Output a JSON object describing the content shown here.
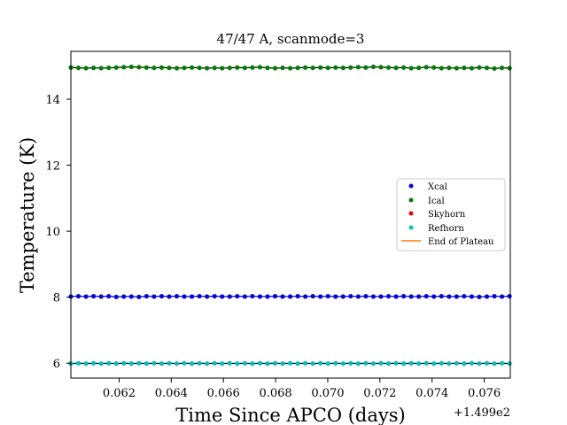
{
  "chart_data": {
    "type": "scatter",
    "title": "47/47 A, scanmode=3",
    "xlabel": "Time Since APCO (days)",
    "ylabel": "Temperature (K)",
    "x_offset_label": "+1.499e2",
    "xlim": [
      0.06015,
      0.077
    ],
    "ylim": [
      5.55,
      15.45
    ],
    "x_ticks": [
      0.062,
      0.064,
      0.066,
      0.068,
      0.07,
      0.072,
      0.074,
      0.076
    ],
    "x_tick_labels": [
      "0.062",
      "0.064",
      "0.066",
      "0.068",
      "0.070",
      "0.072",
      "0.074",
      "0.076"
    ],
    "y_ticks": [
      6,
      8,
      10,
      12,
      14
    ],
    "y_tick_labels": [
      "6",
      "8",
      "10",
      "12",
      "14"
    ],
    "legend_position": "center-right",
    "grid": false,
    "x_start": 0.06015,
    "x_step": 0.00029,
    "n_points": 59,
    "series": [
      {
        "name": "Xcal",
        "color": "#0000ff",
        "marker": "dot",
        "values": [
          8.02,
          8.03,
          8.02,
          8.03,
          8.02,
          8.03,
          8.01,
          8.02,
          8.02,
          8.01,
          8.03,
          8.02,
          8.03,
          8.02,
          8.03,
          8.02,
          8.02,
          8.03,
          8.02,
          8.03,
          8.02,
          8.02,
          8.03,
          8.02,
          8.03,
          8.02,
          8.02,
          8.03,
          8.02,
          8.02,
          8.03,
          8.02,
          8.03,
          8.02,
          8.03,
          8.02,
          8.02,
          8.03,
          8.02,
          8.03,
          8.02,
          8.02,
          8.03,
          8.02,
          8.03,
          8.02,
          8.02,
          8.03,
          8.02,
          8.03,
          8.02,
          8.02,
          8.03,
          8.02,
          8.01,
          8.02,
          8.03,
          8.02,
          8.03
        ]
      },
      {
        "name": "Ical",
        "color": "#008000",
        "marker": "dot",
        "values": [
          14.96,
          14.95,
          14.94,
          14.95,
          14.94,
          14.95,
          14.96,
          14.97,
          14.98,
          14.97,
          14.96,
          14.95,
          14.96,
          14.95,
          14.94,
          14.95,
          14.96,
          14.95,
          14.94,
          14.95,
          14.94,
          14.95,
          14.96,
          14.95,
          14.96,
          14.97,
          14.95,
          14.94,
          14.95,
          14.94,
          14.95,
          14.96,
          14.95,
          14.96,
          14.95,
          14.96,
          14.95,
          14.96,
          14.97,
          14.96,
          14.98,
          14.97,
          14.96,
          14.95,
          14.96,
          14.94,
          14.95,
          14.97,
          14.96,
          14.94,
          14.95,
          14.94,
          14.95,
          14.94,
          14.96,
          14.95,
          14.93,
          14.95,
          14.94
        ]
      },
      {
        "name": "Skyhorn",
        "color": "#ff0000",
        "marker": "dot",
        "values": []
      },
      {
        "name": "Refhorn",
        "color": "#00bfbf",
        "marker": "dot",
        "values": [
          5.99,
          6.0,
          5.99,
          6.0,
          5.99,
          6.0,
          5.99,
          6.0,
          5.99,
          6.0,
          5.99,
          6.0,
          5.99,
          6.0,
          5.99,
          6.0,
          5.99,
          6.0,
          5.99,
          6.0,
          5.99,
          6.0,
          5.99,
          6.0,
          5.99,
          6.0,
          5.99,
          6.0,
          5.99,
          6.0,
          5.99,
          6.0,
          5.99,
          6.0,
          5.99,
          6.0,
          5.99,
          6.0,
          5.99,
          6.0,
          5.99,
          6.0,
          5.99,
          6.0,
          5.99,
          6.0,
          5.99,
          6.0,
          5.99,
          6.0,
          5.99,
          6.0,
          5.99,
          6.0,
          5.99,
          6.0,
          5.99,
          6.0,
          5.99
        ]
      }
    ],
    "end_of_plateau": {
      "name": "End of Plateau",
      "color": "#ff7f0e"
    }
  }
}
